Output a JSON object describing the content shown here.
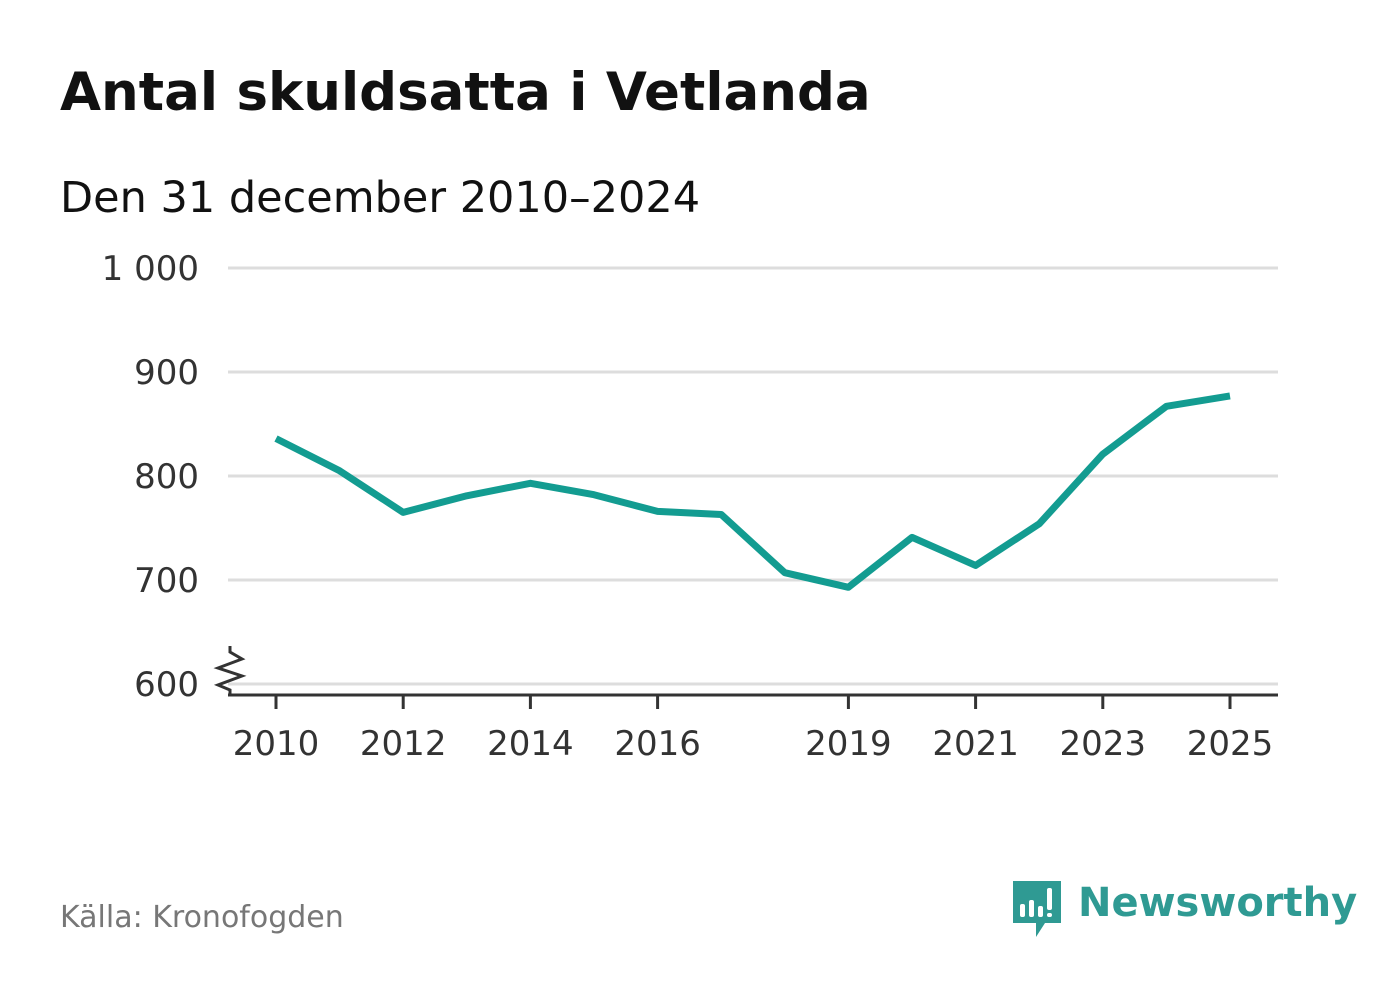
{
  "title": "Antal skuldsatta i Vetlanda",
  "subtitle": "Den 31 december 2010–2024",
  "source": "Källa: Kronofogden",
  "brand": {
    "name": "Newsworthy",
    "icon": "bar-chart-speech-bubble-icon",
    "color": "#2f9a93"
  },
  "chart_data": {
    "type": "line",
    "title": "Antal skuldsatta i Vetlanda",
    "subtitle": "Den 31 december 2010–2024",
    "xlabel": "",
    "ylabel": "",
    "xlim": [
      2010,
      2025
    ],
    "ylim": [
      600,
      1000
    ],
    "axis_break": "y",
    "grid": true,
    "line_color": "#139c91",
    "grid_color": "#dddddd",
    "axis_color": "#333333",
    "y_ticks": [
      600,
      700,
      800,
      900,
      1000
    ],
    "y_tick_labels": [
      "600",
      "700",
      "800",
      "900",
      "1 000"
    ],
    "x_ticks": [
      2010,
      2012,
      2014,
      2016,
      2019,
      2021,
      2023,
      2025
    ],
    "x_tick_labels": [
      "2010",
      "2012",
      "2014",
      "2016",
      "2019",
      "2021",
      "2023",
      "2025"
    ],
    "series": [
      {
        "name": "Antal skuldsatta",
        "x": [
          2010,
          2011,
          2012,
          2013,
          2014,
          2015,
          2016,
          2017,
          2018,
          2019,
          2020,
          2021,
          2022,
          2023,
          2024,
          2025
        ],
        "values": [
          836,
          805,
          765,
          781,
          793,
          782,
          766,
          763,
          707,
          693,
          741,
          714,
          754,
          821,
          867,
          877
        ]
      }
    ]
  }
}
